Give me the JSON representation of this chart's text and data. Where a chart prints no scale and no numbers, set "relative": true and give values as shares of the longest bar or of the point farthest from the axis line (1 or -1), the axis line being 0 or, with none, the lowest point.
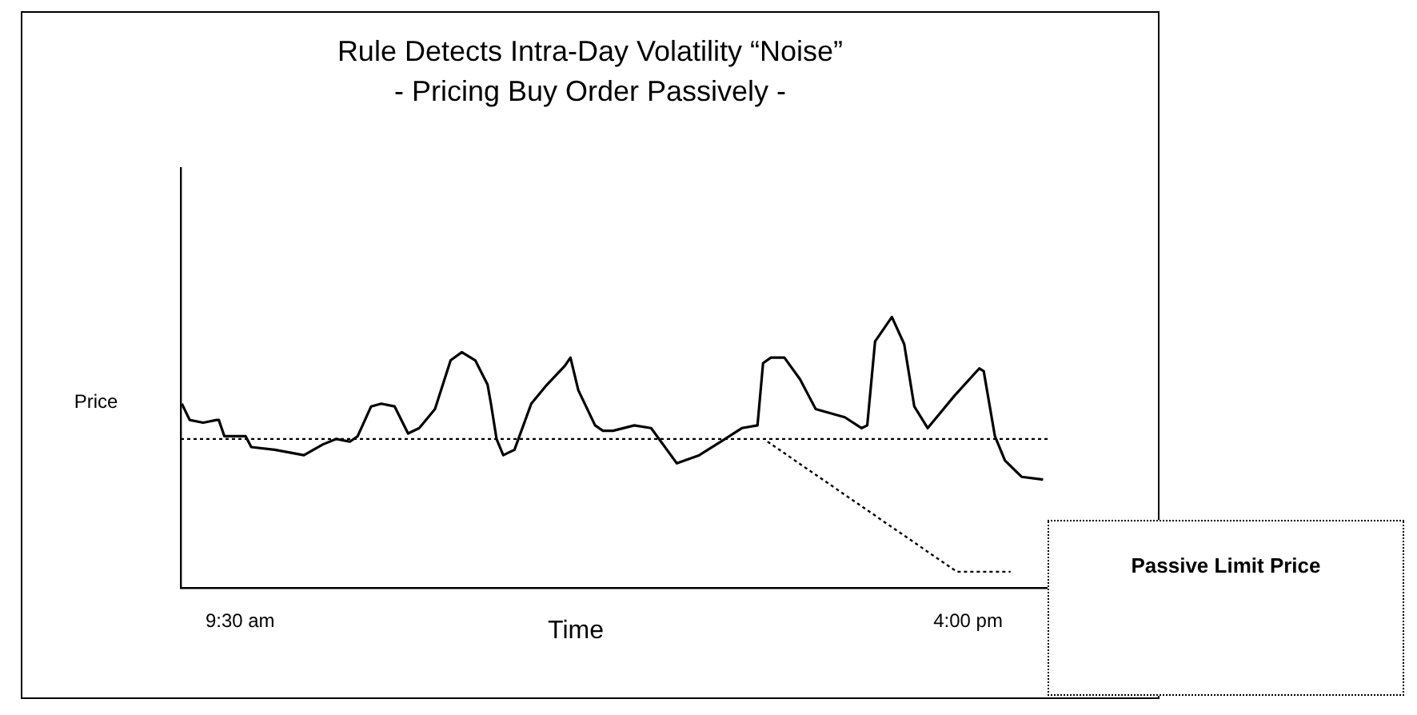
{
  "chart_data": {
    "type": "line",
    "title": "Rule Detects Intra-Day Volatility “Noise”",
    "subtitle": "- Pricing Buy Order Passively -",
    "xlabel": "Time",
    "ylabel": "Price",
    "relative": true,
    "xlim": [
      8.97,
      16.71
    ],
    "xticks": [
      {
        "value": 9.5,
        "label": "9:30 am"
      },
      {
        "value": 16,
        "label": "4:00 pm"
      }
    ],
    "grid": false,
    "legend": false,
    "marker": "none",
    "line_style": "solid",
    "series": [
      {
        "color": "#000000",
        "x": [
          8.98,
          9.05,
          9.17,
          9.29,
          9.31,
          9.36,
          9.55,
          9.6,
          9.81,
          10.07,
          10.24,
          10.36,
          10.48,
          10.55,
          10.67,
          10.76,
          10.88,
          11.0,
          11.1,
          11.24,
          11.38,
          11.48,
          11.6,
          11.71,
          11.74,
          11.79,
          11.85,
          11.95,
          12.1,
          12.24,
          12.4,
          12.45,
          12.52,
          12.67,
          12.74,
          12.83,
          13.02,
          13.17,
          13.4,
          13.6,
          13.83,
          13.98,
          14.12,
          14.17,
          14.24,
          14.36,
          14.5,
          14.64,
          14.9,
          15.05,
          15.1,
          15.17,
          15.32,
          15.43,
          15.52,
          15.64,
          15.88,
          16.1,
          16.14,
          16.24,
          16.33,
          16.48,
          16.67
        ],
        "values": [
          0.68,
          0.62,
          0.61,
          0.62,
          0.62,
          0.56,
          0.56,
          0.52,
          0.51,
          0.49,
          0.53,
          0.55,
          0.54,
          0.56,
          0.67,
          0.68,
          0.67,
          0.57,
          0.59,
          0.66,
          0.84,
          0.87,
          0.84,
          0.75,
          0.68,
          0.55,
          0.49,
          0.51,
          0.68,
          0.75,
          0.82,
          0.85,
          0.73,
          0.6,
          0.58,
          0.58,
          0.6,
          0.59,
          0.46,
          0.49,
          0.55,
          0.59,
          0.6,
          0.83,
          0.85,
          0.85,
          0.77,
          0.66,
          0.63,
          0.59,
          0.6,
          0.91,
          1,
          0.9,
          0.67,
          0.59,
          0.71,
          0.81,
          0.8,
          0.56,
          0.47,
          0.41,
          0.4
        ]
      },
      {
        "type": "line",
        "color": "#000000",
        "line_style": "dotted",
        "x": [
          14.21,
          15.9,
          16.38
        ],
        "values": [
          0.54,
          0.06,
          0.06
        ]
      }
    ],
    "ref_lines": [
      {
        "axis": "y",
        "value": 0.55,
        "color": "#000000",
        "line_style": "dotted"
      }
    ],
    "annotations": [
      "Passive Limit Price"
    ]
  }
}
